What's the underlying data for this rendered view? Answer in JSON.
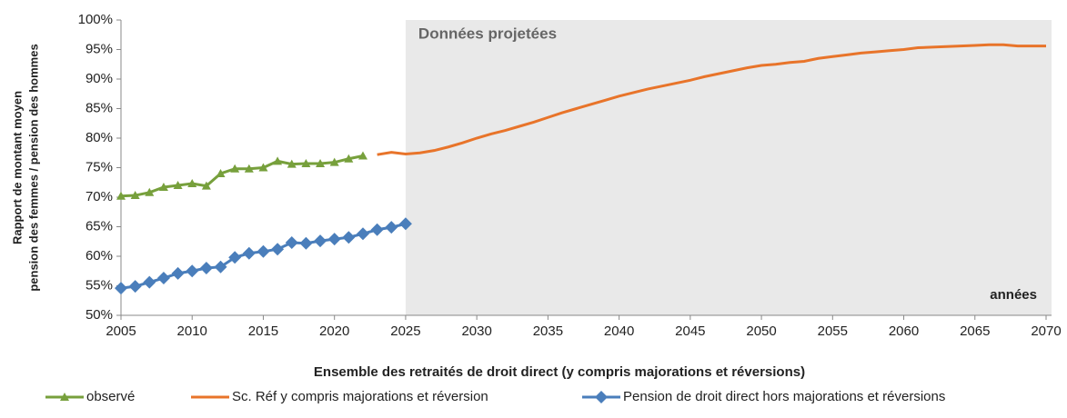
{
  "chart_data": {
    "type": "line",
    "y_label": [
      "Rapport de montant moyen",
      "pension des femmes / pension des hommes"
    ],
    "x_label": "Ensemble des retraités de droit direct (y compris majorations et réversions)",
    "annotations": [
      "Données projetées",
      "années"
    ],
    "projection_start": 2025,
    "xlim": [
      2005,
      2070
    ],
    "xticks": [
      2005,
      2010,
      2015,
      2020,
      2025,
      2030,
      2035,
      2040,
      2045,
      2050,
      2055,
      2060,
      2065,
      2070
    ],
    "ylim": [
      50,
      100
    ],
    "yticks": [
      {
        "value": 50,
        "label": "50%"
      },
      {
        "value": 55,
        "label": "55%"
      },
      {
        "value": 60,
        "label": "60%"
      },
      {
        "value": 65,
        "label": "65%"
      },
      {
        "value": 70,
        "label": "70%"
      },
      {
        "value": 75,
        "label": "75%"
      },
      {
        "value": 80,
        "label": "80%"
      },
      {
        "value": 85,
        "label": "85%"
      },
      {
        "value": 90,
        "label": "90%"
      },
      {
        "value": 95,
        "label": "95%"
      },
      {
        "value": 100,
        "label": "100%"
      }
    ],
    "grid": false,
    "legend": "bottom",
    "series": [
      {
        "name": "observé",
        "color": "#77a03c",
        "marker": "triangle",
        "x": [
          2005,
          2006,
          2007,
          2008,
          2009,
          2010,
          2011,
          2012,
          2013,
          2014,
          2015,
          2016,
          2017,
          2018,
          2019,
          2020,
          2021,
          2022
        ],
        "values": [
          70.2,
          70.3,
          70.8,
          71.7,
          72.0,
          72.3,
          71.9,
          74.0,
          74.8,
          74.8,
          75.0,
          76.1,
          75.6,
          75.7,
          75.7,
          75.9,
          76.5,
          77.0
        ]
      },
      {
        "name": "Sc. Réf y compris majorations et réversion",
        "color": "#e8742a",
        "marker": "none",
        "x": [
          2023,
          2024,
          2025,
          2026,
          2027,
          2028,
          2029,
          2030,
          2031,
          2032,
          2033,
          2034,
          2035,
          2036,
          2037,
          2038,
          2039,
          2040,
          2041,
          2042,
          2043,
          2044,
          2045,
          2046,
          2047,
          2048,
          2049,
          2050,
          2051,
          2052,
          2053,
          2054,
          2055,
          2056,
          2057,
          2058,
          2059,
          2060,
          2061,
          2062,
          2063,
          2064,
          2065,
          2066,
          2067,
          2068,
          2069,
          2070
        ],
        "values": [
          77.2,
          77.6,
          77.3,
          77.5,
          77.9,
          78.5,
          79.2,
          80.0,
          80.7,
          81.3,
          82.0,
          82.7,
          83.5,
          84.3,
          85.0,
          85.7,
          86.4,
          87.1,
          87.7,
          88.3,
          88.8,
          89.3,
          89.8,
          90.4,
          90.9,
          91.4,
          91.9,
          92.3,
          92.5,
          92.8,
          93.0,
          93.5,
          93.8,
          94.1,
          94.4,
          94.6,
          94.8,
          95.0,
          95.3,
          95.4,
          95.5,
          95.6,
          95.7,
          95.8,
          95.8,
          95.6,
          95.6,
          95.6
        ]
      },
      {
        "name": "Pension de droit direct hors majorations et réversions",
        "color": "#4a7ebb",
        "marker": "diamond",
        "x": [
          2005,
          2006,
          2007,
          2008,
          2009,
          2010,
          2011,
          2012,
          2013,
          2014,
          2015,
          2016,
          2017,
          2018,
          2019,
          2020,
          2021,
          2022,
          2023,
          2024,
          2025
        ],
        "values": [
          54.6,
          54.9,
          55.6,
          56.3,
          57.1,
          57.5,
          58.0,
          58.2,
          59.8,
          60.5,
          60.8,
          61.2,
          62.3,
          62.2,
          62.6,
          62.9,
          63.2,
          63.8,
          64.5,
          64.9,
          65.5
        ]
      }
    ]
  }
}
